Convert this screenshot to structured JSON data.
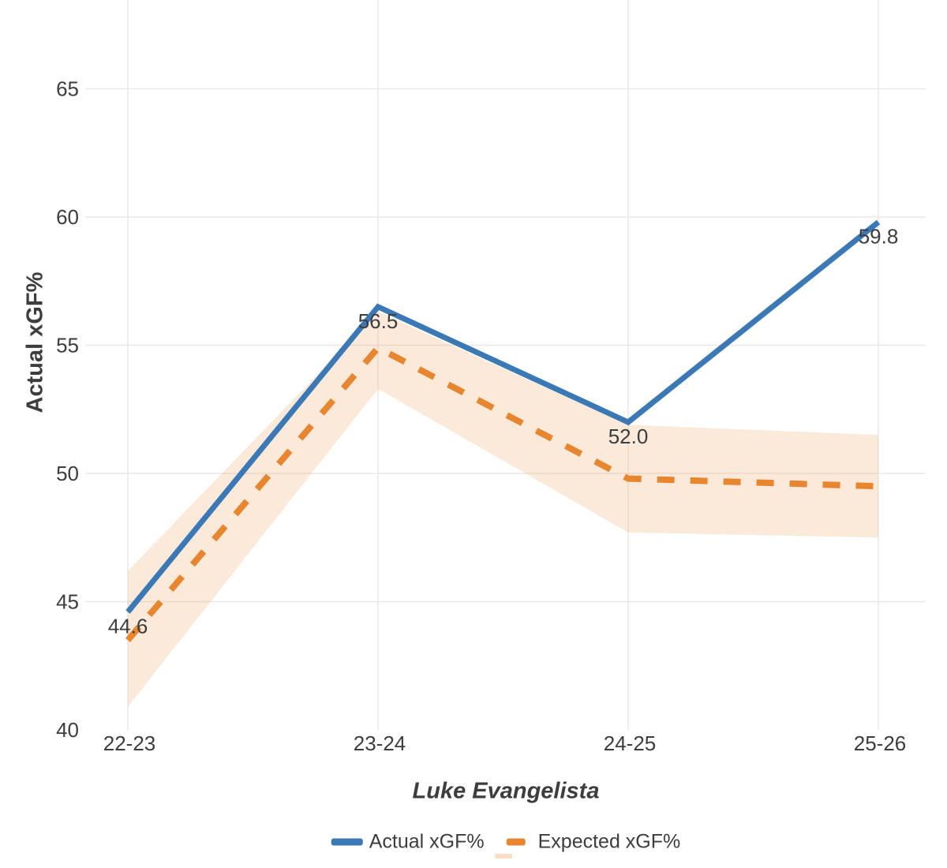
{
  "chart_data": {
    "type": "line",
    "title": "",
    "xlabel": "Luke Evangelista",
    "ylabel": "Actual xGF%",
    "categories": [
      "22-23",
      "23-24",
      "24-25",
      "25-26"
    ],
    "series": [
      {
        "name": "Actual xGF%",
        "values": [
          44.6,
          56.5,
          52.0,
          59.8
        ],
        "data_labels": [
          "44.6",
          "56.5",
          "52.0",
          "59.8"
        ],
        "color": "#3a79b6",
        "style": "solid"
      },
      {
        "name": "Expected xGF%",
        "values": [
          43.5,
          54.9,
          49.8,
          49.5
        ],
        "color": "#e8862f",
        "style": "dashed",
        "band_upper": [
          46.2,
          56.3,
          51.9,
          51.5
        ],
        "band_lower": [
          40.9,
          53.3,
          47.7,
          47.5
        ],
        "band_color": "#e9862d",
        "band_opacity": 0.18
      }
    ],
    "ylim": [
      40,
      65
    ],
    "y_ticks": [
      40,
      45,
      50,
      55,
      60,
      65
    ],
    "grid": true,
    "grid_color": "#e9e9e9",
    "text_color": "#3d3d3d",
    "legend_position": "bottom",
    "legend": [
      "Actual xGF%",
      "Expected xGF%"
    ]
  }
}
